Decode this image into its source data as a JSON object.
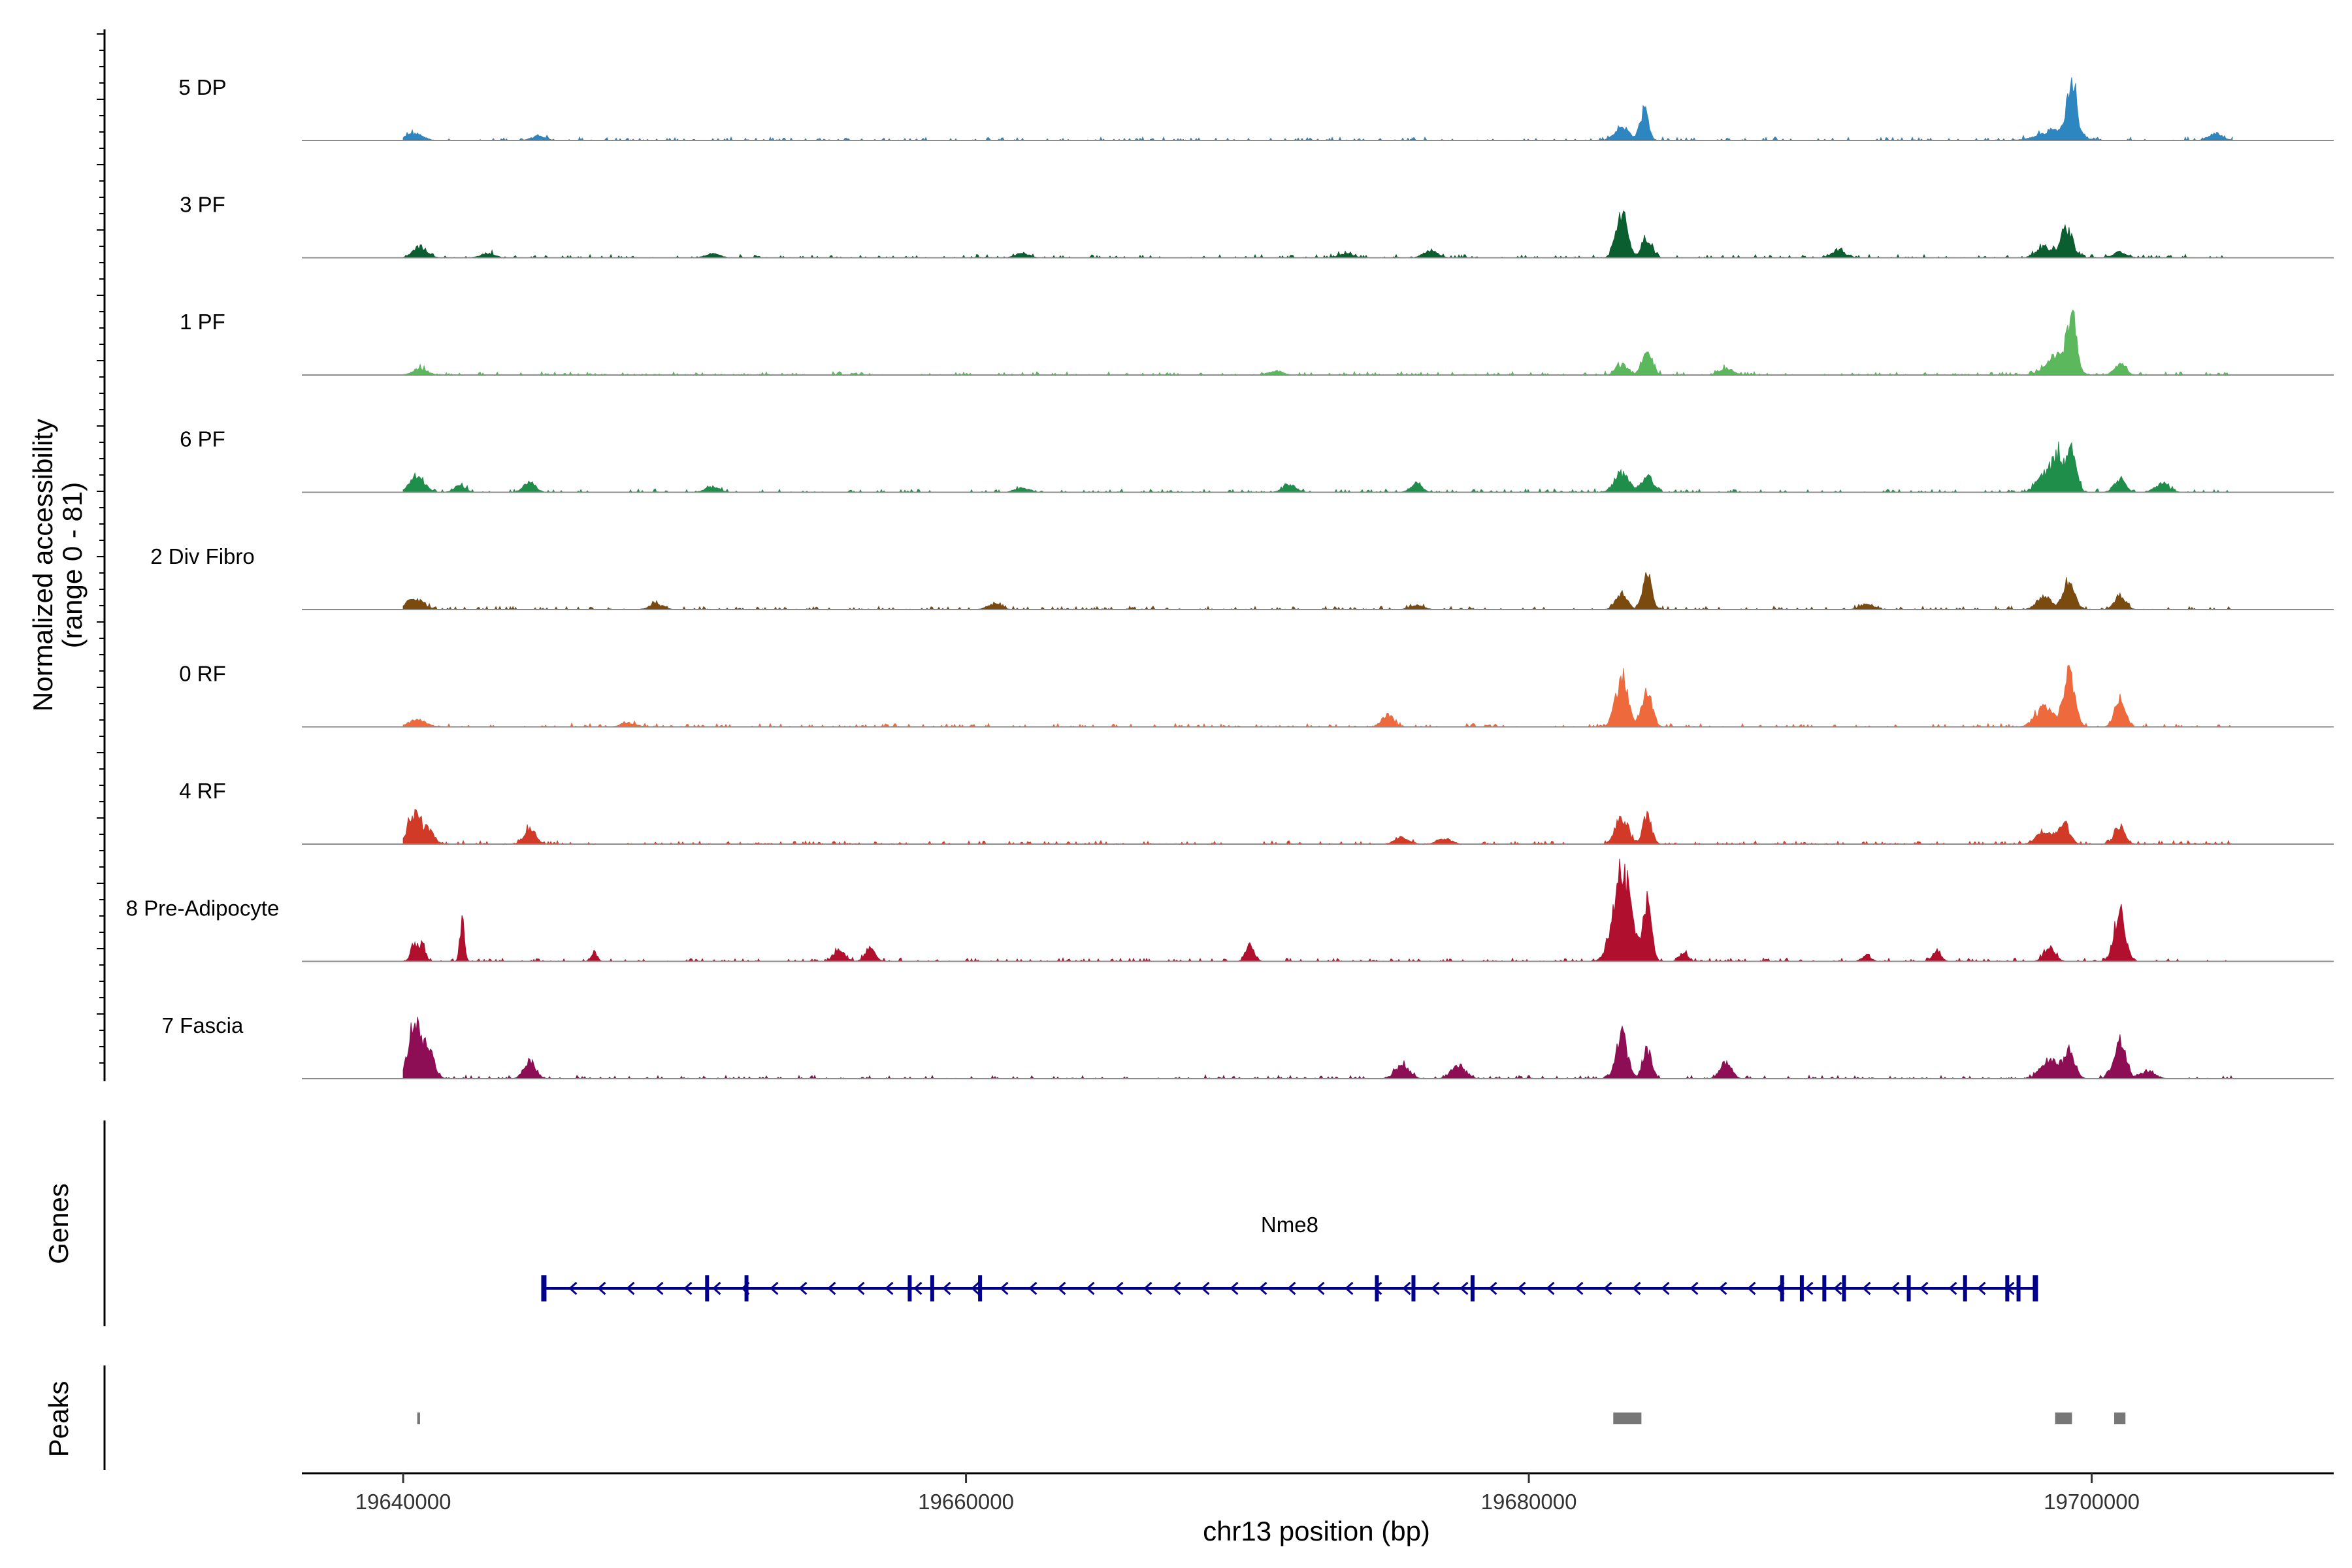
{
  "chart_data": {
    "type": "area",
    "title": "",
    "ylabel": "Normalized accessibility",
    "ylabel_range": "(range 0 - 81)",
    "ylim": [
      0,
      81
    ],
    "xlabel": "chr13 position (bp)",
    "xlim": [
      19636400,
      19708600
    ],
    "x_ticks": [
      19640000,
      19660000,
      19680000,
      19700000
    ],
    "x_tick_labels": [
      "19640000",
      "19660000",
      "19680000",
      "19700000"
    ],
    "grid": false,
    "tracks_extent": [
      19640000,
      19705000
    ],
    "series": [
      {
        "name": "5 DP",
        "color": "#2E86C1",
        "peaks": [
          [
            19640400,
            5,
            300
          ],
          [
            19644800,
            3,
            250
          ],
          [
            19683300,
            10,
            250
          ],
          [
            19684100,
            22,
            150
          ],
          [
            19698800,
            8,
            600
          ],
          [
            19699300,
            42,
            160
          ],
          [
            19704400,
            5,
            250
          ]
        ]
      },
      {
        "name": "3 PF",
        "color": "#0B5E2F",
        "peaks": [
          [
            19640600,
            8,
            250
          ],
          [
            19643000,
            3,
            250
          ],
          [
            19651000,
            3,
            250
          ],
          [
            19662000,
            3,
            250
          ],
          [
            19673500,
            3,
            250
          ],
          [
            19676500,
            5,
            250
          ],
          [
            19683300,
            32,
            200
          ],
          [
            19684200,
            14,
            180
          ],
          [
            19691000,
            5,
            250
          ],
          [
            19698300,
            8,
            250
          ],
          [
            19699100,
            22,
            220
          ],
          [
            19701000,
            4,
            250
          ]
        ]
      },
      {
        "name": "1 PF",
        "color": "#5CB85C",
        "peaks": [
          [
            19640600,
            5,
            250
          ],
          [
            19671000,
            3,
            250
          ],
          [
            19683300,
            8,
            200
          ],
          [
            19684200,
            18,
            180
          ],
          [
            19687000,
            5,
            250
          ],
          [
            19698800,
            14,
            400
          ],
          [
            19699300,
            40,
            160
          ],
          [
            19701000,
            8,
            200
          ]
        ]
      },
      {
        "name": "6 PF",
        "color": "#1E8E4A",
        "peaks": [
          [
            19640500,
            12,
            250
          ],
          [
            19642000,
            5,
            200
          ],
          [
            19644500,
            8,
            200
          ],
          [
            19651000,
            4,
            250
          ],
          [
            19662000,
            3,
            250
          ],
          [
            19671500,
            5,
            250
          ],
          [
            19676000,
            7,
            200
          ],
          [
            19683300,
            14,
            250
          ],
          [
            19684200,
            12,
            200
          ],
          [
            19698300,
            14,
            250
          ],
          [
            19698800,
            28,
            180
          ],
          [
            19699300,
            36,
            160
          ],
          [
            19701000,
            10,
            200
          ],
          [
            19702500,
            6,
            250
          ]
        ]
      },
      {
        "name": "2 Div Fibro",
        "color": "#7B4A0F",
        "peaks": [
          [
            19640400,
            8,
            300
          ],
          [
            19649000,
            4,
            250
          ],
          [
            19661000,
            4,
            250
          ],
          [
            19676000,
            3,
            250
          ],
          [
            19683300,
            12,
            200
          ],
          [
            19684200,
            26,
            160
          ],
          [
            19692000,
            4,
            250
          ],
          [
            19698300,
            10,
            250
          ],
          [
            19699200,
            20,
            200
          ],
          [
            19701000,
            10,
            200
          ]
        ]
      },
      {
        "name": "0 RF",
        "color": "#EE6A3C",
        "peaks": [
          [
            19640500,
            5,
            300
          ],
          [
            19648000,
            3,
            250
          ],
          [
            19675000,
            9,
            200
          ],
          [
            19683300,
            38,
            220
          ],
          [
            19684200,
            26,
            180
          ],
          [
            19698300,
            14,
            300
          ],
          [
            19699200,
            40,
            200
          ],
          [
            19701000,
            20,
            180
          ]
        ]
      },
      {
        "name": "4 RF",
        "color": "#D03A26",
        "peaks": [
          [
            19640400,
            22,
            220
          ],
          [
            19640900,
            10,
            200
          ],
          [
            19644500,
            12,
            200
          ],
          [
            19675500,
            5,
            250
          ],
          [
            19677000,
            4,
            250
          ],
          [
            19683300,
            20,
            220
          ],
          [
            19684200,
            20,
            160
          ],
          [
            19698300,
            10,
            250
          ],
          [
            19699000,
            16,
            200
          ],
          [
            19701000,
            14,
            180
          ]
        ]
      },
      {
        "name": "8 Pre-Adipocyte",
        "color": "#B0102E",
        "peaks": [
          [
            19640400,
            14,
            120
          ],
          [
            19640700,
            12,
            100
          ],
          [
            19642100,
            30,
            80
          ],
          [
            19646800,
            7,
            100
          ],
          [
            19655500,
            8,
            200
          ],
          [
            19656600,
            10,
            180
          ],
          [
            19670100,
            12,
            150
          ],
          [
            19683300,
            70,
            300
          ],
          [
            19684200,
            45,
            150
          ],
          [
            19685500,
            6,
            150
          ],
          [
            19692000,
            5,
            150
          ],
          [
            19694500,
            8,
            150
          ],
          [
            19698500,
            10,
            200
          ],
          [
            19701000,
            36,
            200
          ]
        ]
      },
      {
        "name": "7 Fascia",
        "color": "#8E0E55",
        "peaks": [
          [
            19640400,
            40,
            220
          ],
          [
            19640900,
            22,
            200
          ],
          [
            19644500,
            14,
            200
          ],
          [
            19675500,
            10,
            250
          ],
          [
            19677500,
            10,
            250
          ],
          [
            19683300,
            32,
            200
          ],
          [
            19684200,
            22,
            160
          ],
          [
            19687000,
            12,
            200
          ],
          [
            19698500,
            14,
            300
          ],
          [
            19699200,
            20,
            200
          ],
          [
            19701000,
            28,
            200
          ],
          [
            19702000,
            6,
            250
          ]
        ]
      }
    ]
  },
  "genes": {
    "label": "Genes",
    "color": "#00008B",
    "items": [
      {
        "name": "Nme8",
        "start": 19645000,
        "end": 19698000,
        "strand": "-",
        "exons": [
          19645000,
          19650800,
          19652200,
          19658000,
          19658800,
          19660500,
          19674600,
          19675900,
          19678000,
          19689000,
          19689700,
          19690500,
          19691200,
          19693500,
          19695500,
          19697000,
          19697400,
          19698000
        ]
      }
    ]
  },
  "peaks": {
    "label": "Peaks",
    "color": "#777777",
    "regions": [
      [
        19640500,
        19640600
      ],
      [
        19683000,
        19684000
      ],
      [
        19698700,
        19699300
      ],
      [
        19700800,
        19701200
      ]
    ]
  }
}
